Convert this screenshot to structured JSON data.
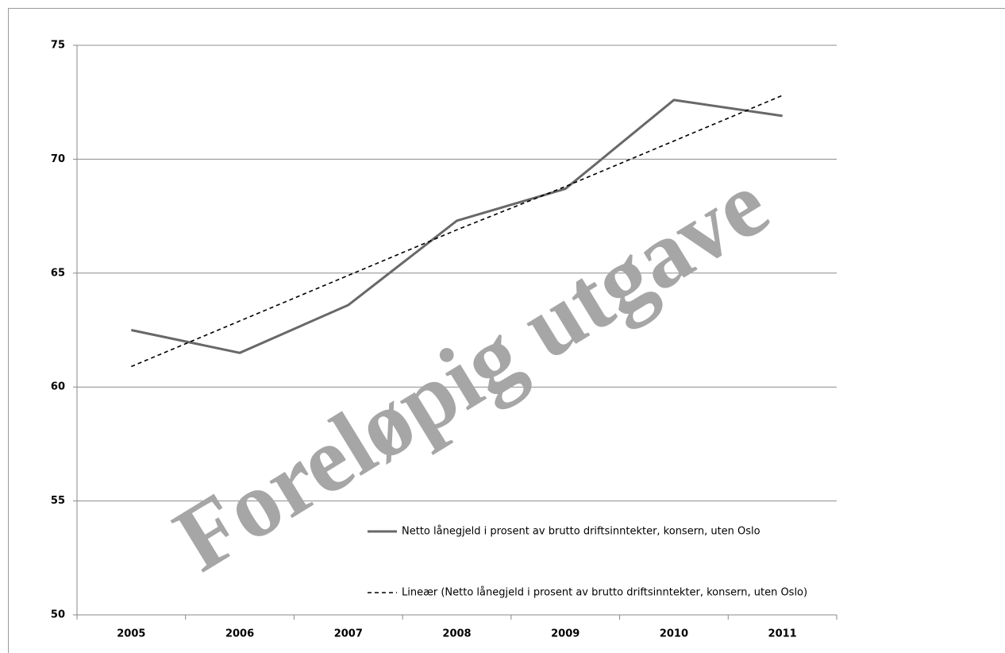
{
  "chart_data": {
    "type": "line",
    "categories": [
      "2005",
      "2006",
      "2007",
      "2008",
      "2009",
      "2010",
      "2011"
    ],
    "series": [
      {
        "name": "Netto lånegjeld i prosent av brutto driftsinntekter, konsern, uten Oslo",
        "color": "#686868",
        "dashed": false,
        "values": [
          62.5,
          61.5,
          63.6,
          67.3,
          68.7,
          72.6,
          71.9
        ]
      },
      {
        "name": "Lineær (Netto lånegjeld i prosent av brutto driftsinntekter, konsern, uten Oslo)",
        "color": "#000000",
        "dashed": true,
        "values": [
          60.9,
          62.9,
          64.9,
          66.9,
          68.8,
          70.8,
          72.8
        ]
      }
    ],
    "ylim": [
      50,
      75
    ],
    "yticks": [
      50,
      55,
      60,
      65,
      70,
      75
    ],
    "grid": true,
    "legend": "lower right",
    "watermark": "Foreløpig utgave"
  }
}
